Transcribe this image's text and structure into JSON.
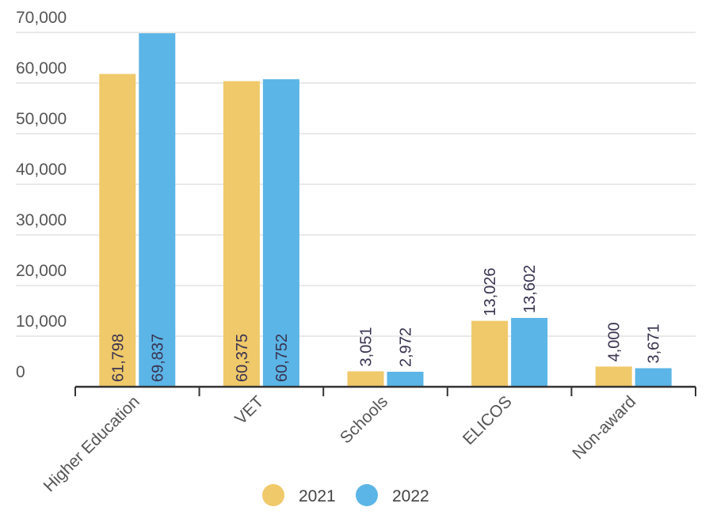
{
  "chart_data": {
    "type": "bar",
    "title": "",
    "xlabel": "",
    "ylabel": "",
    "categories": [
      "Higher Education",
      "VET",
      "Schools",
      "ELICOS",
      "Non-award"
    ],
    "series": [
      {
        "name": "2021",
        "color": "#EFC96A",
        "values": [
          61798,
          60375,
          3051,
          13026,
          4000
        ],
        "labels": [
          "61,798",
          "60,375",
          "3,051",
          "13,026",
          "4,000"
        ]
      },
      {
        "name": "2022",
        "color": "#5BB5E6",
        "values": [
          69837,
          60752,
          2972,
          13602,
          3671
        ],
        "labels": [
          "69,837",
          "60,752",
          "2,972",
          "13,602",
          "3,671"
        ]
      }
    ],
    "yticks": [
      0,
      10000,
      20000,
      30000,
      40000,
      50000,
      60000,
      70000
    ],
    "ytick_labels": [
      "0",
      "10,000",
      "20,000",
      "30,000",
      "40,000",
      "50,000",
      "60,000",
      "70,000"
    ],
    "ylim": [
      0,
      70000
    ],
    "grid": true,
    "legend_position": "bottom-center"
  }
}
